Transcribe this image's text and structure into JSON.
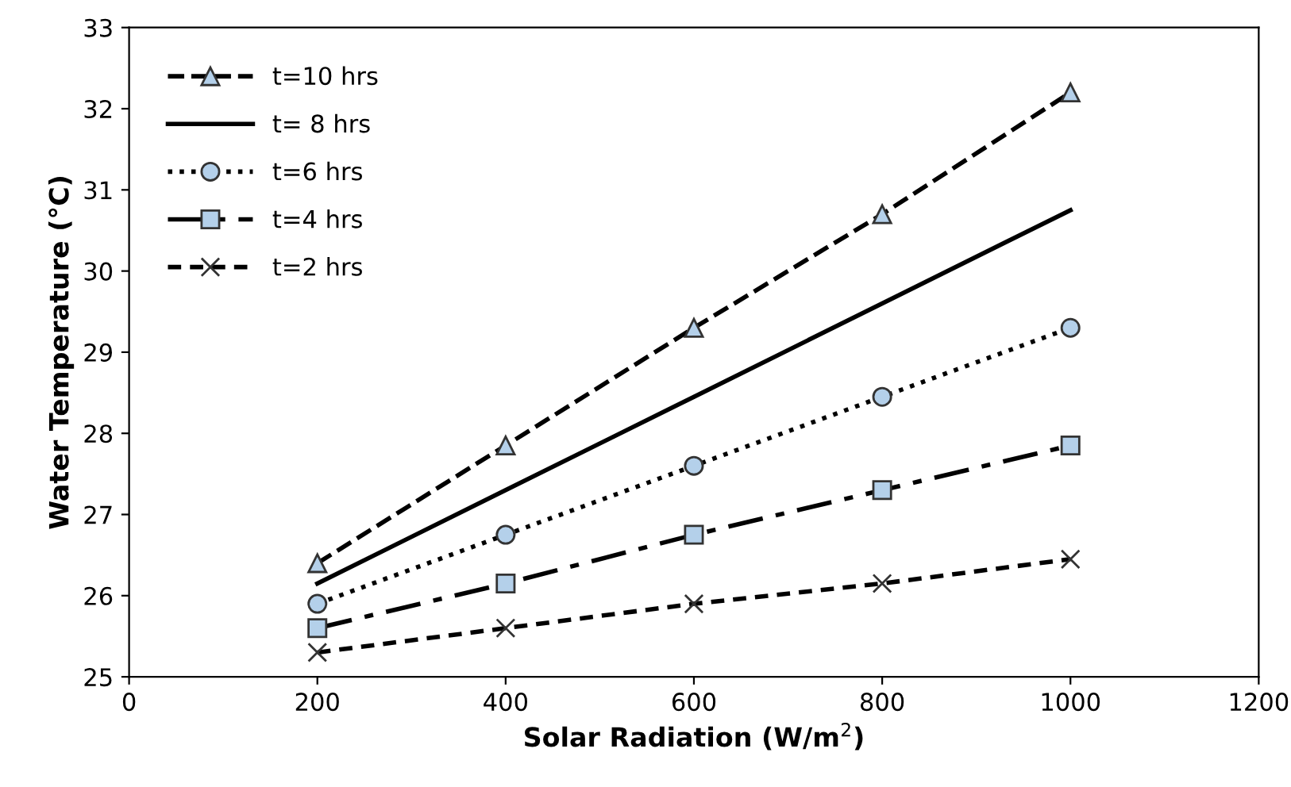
{
  "chart_data": {
    "type": "line",
    "xlabel": "Solar Radiation (W/m$^{2}$)",
    "ylabel": "Water Temperature (°C)",
    "x": [
      200,
      400,
      600,
      800,
      1000
    ],
    "series": [
      {
        "name": "t=10 hrs",
        "color": "#000000",
        "marker": "triangle",
        "line_style": "dashed",
        "values": [
          26.4,
          27.85,
          29.3,
          30.7,
          32.2
        ]
      },
      {
        "name": "t= 8 hrs",
        "color": "#000000",
        "marker": "none",
        "line_style": "solid",
        "values": [
          26.15,
          27.3,
          28.45,
          29.6,
          30.75
        ]
      },
      {
        "name": "t=6 hrs",
        "color": "#000000",
        "marker": "circle",
        "line_style": "dotted",
        "values": [
          25.9,
          26.75,
          27.6,
          28.45,
          29.3
        ]
      },
      {
        "name": "t=4 hrs",
        "color": "#000000",
        "marker": "square",
        "line_style": "dashdot",
        "values": [
          25.6,
          26.15,
          26.75,
          27.3,
          27.85
        ]
      },
      {
        "name": "t=2 hrs",
        "color": "#000000",
        "marker": "cross",
        "line_style": "dashed",
        "values": [
          25.3,
          25.6,
          25.9,
          26.15,
          26.45
        ]
      }
    ],
    "xlim": [
      0,
      1200
    ],
    "xticks": [
      0,
      200,
      400,
      600,
      800,
      1000,
      1200
    ],
    "ylim": [
      25,
      33
    ],
    "yticks": [
      25,
      26,
      27,
      28,
      29,
      30,
      31,
      32,
      33
    ],
    "grid": false,
    "legend": "top left"
  }
}
